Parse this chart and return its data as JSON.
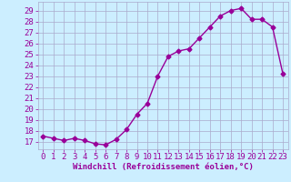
{
  "x": [
    0,
    1,
    2,
    3,
    4,
    5,
    6,
    7,
    8,
    9,
    10,
    11,
    12,
    13,
    14,
    15,
    16,
    17,
    18,
    19,
    20,
    21,
    22,
    23
  ],
  "y": [
    17.5,
    17.3,
    17.1,
    17.3,
    17.1,
    16.8,
    16.7,
    17.2,
    18.1,
    19.5,
    20.5,
    23.0,
    24.8,
    25.3,
    25.5,
    26.5,
    27.5,
    28.5,
    29.0,
    29.2,
    28.2,
    28.2,
    27.5,
    23.2
  ],
  "line_color": "#990099",
  "marker": "D",
  "markersize": 2.5,
  "linewidth": 1.0,
  "bg_color": "#cceeff",
  "grid_color": "#aaaacc",
  "xlabel": "Windchill (Refroidissement éolien,°C)",
  "ylabel_ticks": [
    17,
    18,
    19,
    20,
    21,
    22,
    23,
    24,
    25,
    26,
    27,
    28,
    29
  ],
  "ylim": [
    16.3,
    29.8
  ],
  "xlim": [
    -0.5,
    23.5
  ],
  "xlabel_fontsize": 6.5,
  "tick_fontsize": 6.5
}
